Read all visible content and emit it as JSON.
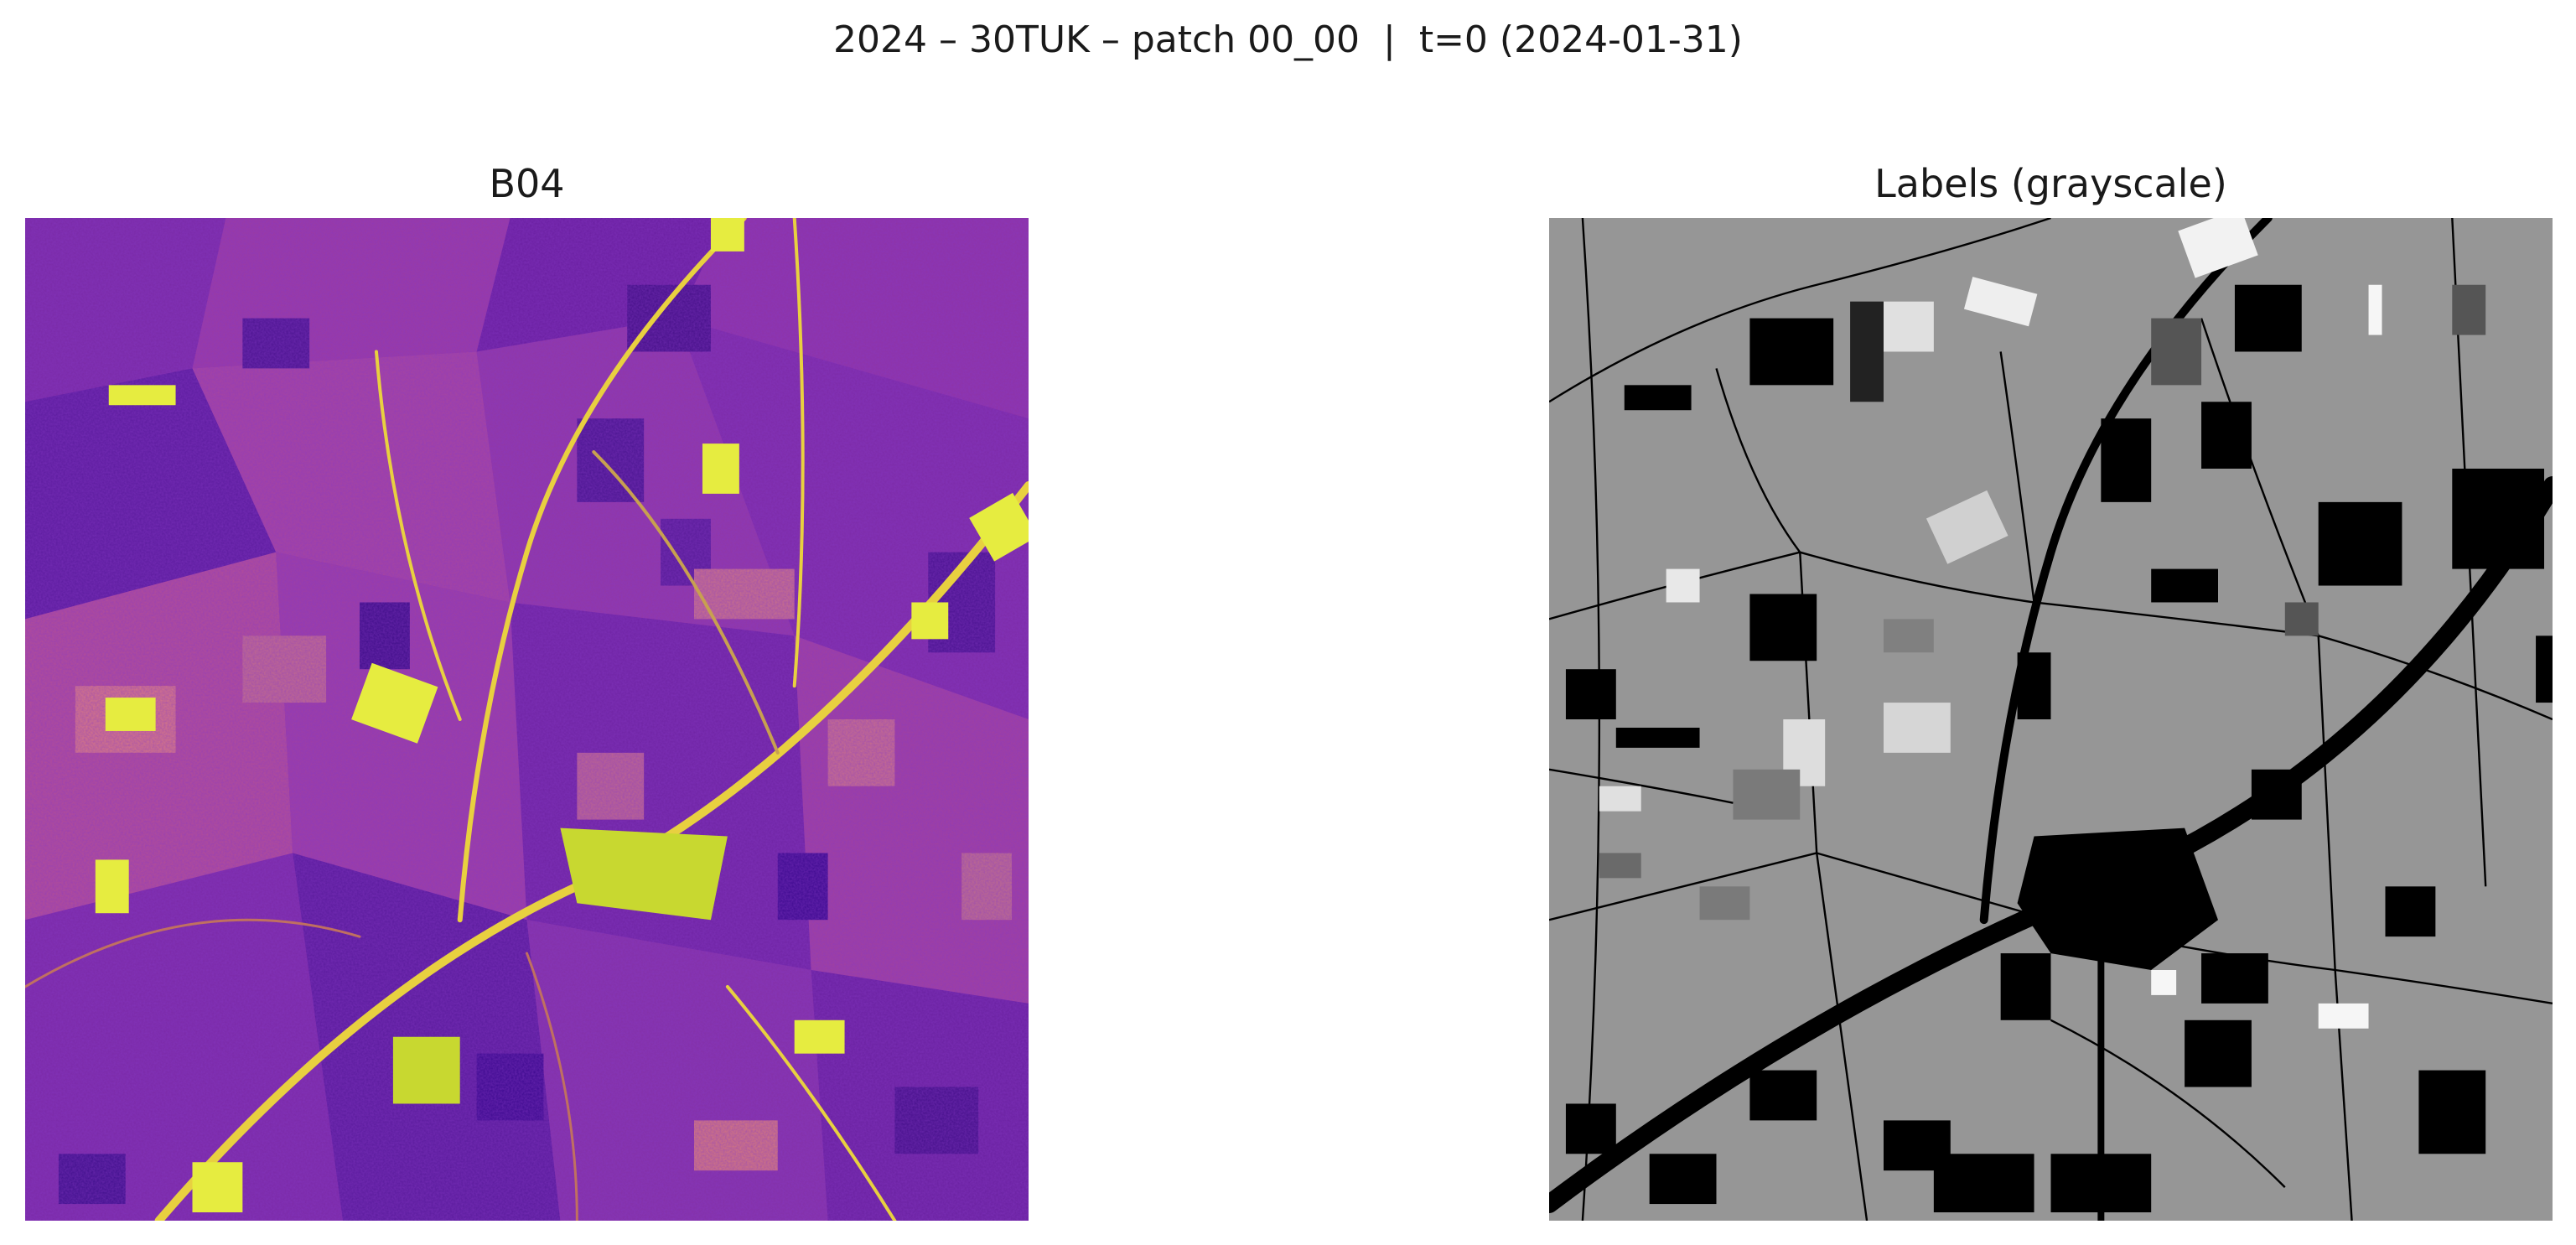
{
  "figure": {
    "suptitle": "2024 – 30TUK – patch 00_00  |  t=0 (2024-01-31)"
  },
  "panels": [
    {
      "title": "B04",
      "content": "satellite band image",
      "colormap": "plasma"
    },
    {
      "title": "Labels (grayscale)",
      "content": "label segmentation map",
      "colormap": "gray"
    }
  ],
  "colors": {
    "plasma_dark": "#3d0a8f",
    "plasma_mid": "#8a2fa8",
    "plasma_light": "#cc5a8a",
    "plasma_bright": "#e8f040",
    "label_background": "#969696",
    "label_black": "#000000",
    "label_white": "#f2f2f2"
  }
}
